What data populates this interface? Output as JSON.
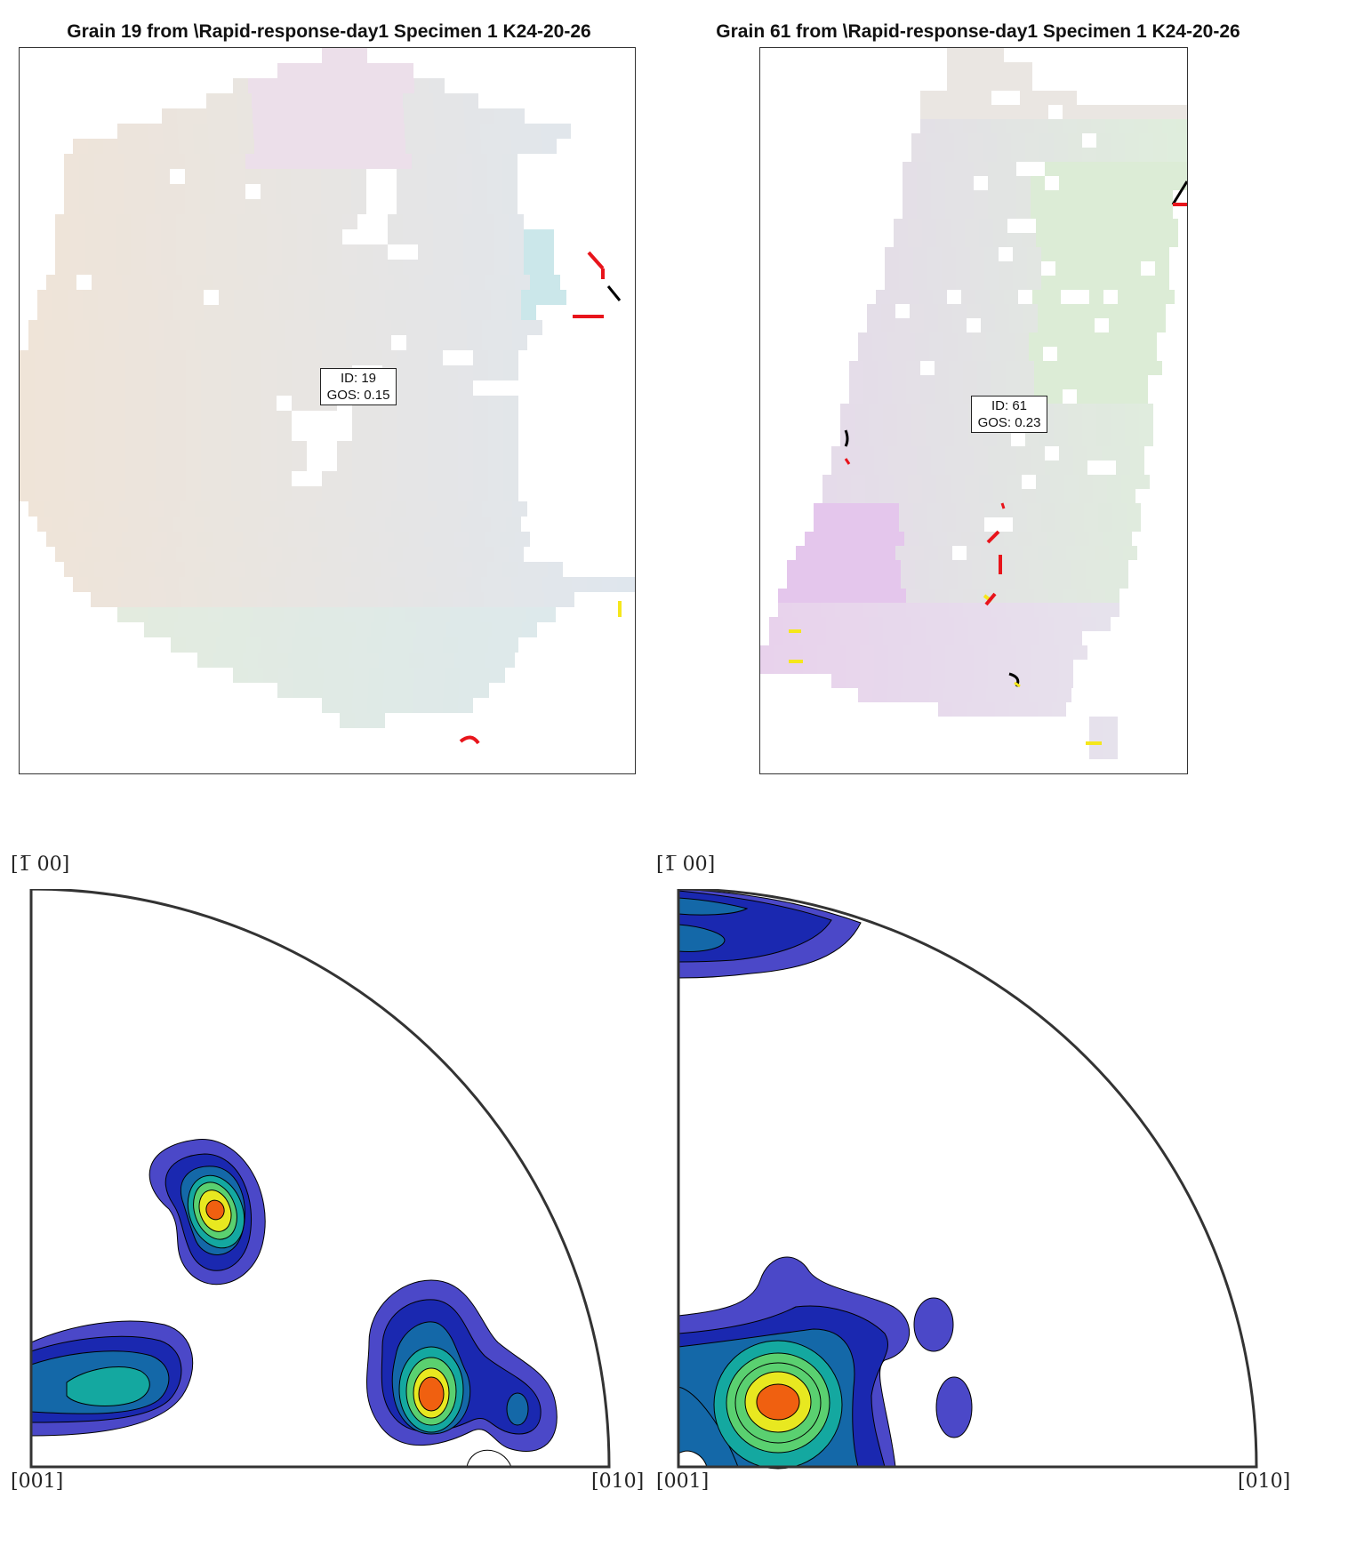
{
  "grains": [
    {
      "title": "Grain 19 from \\Rapid-response-day1 Specimen 1 K24-20-26",
      "id_label": "ID: 19",
      "gos_label": "GOS: 0.15"
    },
    {
      "title": "Grain 61 from \\Rapid-response-day1 Specimen 1 K24-20-26",
      "id_label": "ID: 61",
      "gos_label": "GOS: 0.23"
    }
  ],
  "pole_figures": [
    {
      "top_label": "[1̅ 00]",
      "left_label": "[001]",
      "right_label": "[010]"
    },
    {
      "top_label": "[1̅ 00]",
      "left_label": "[001]",
      "right_label": "[010]"
    }
  ],
  "colors": {
    "boundary_high": "#e8141b",
    "boundary_low": "#000000",
    "boundary_twin": "#f5e71c",
    "contour_levels": [
      "#4b48c8",
      "#1a28b0",
      "#1468a8",
      "#14a8a0",
      "#5ad070",
      "#e8e820",
      "#f06010"
    ]
  }
}
